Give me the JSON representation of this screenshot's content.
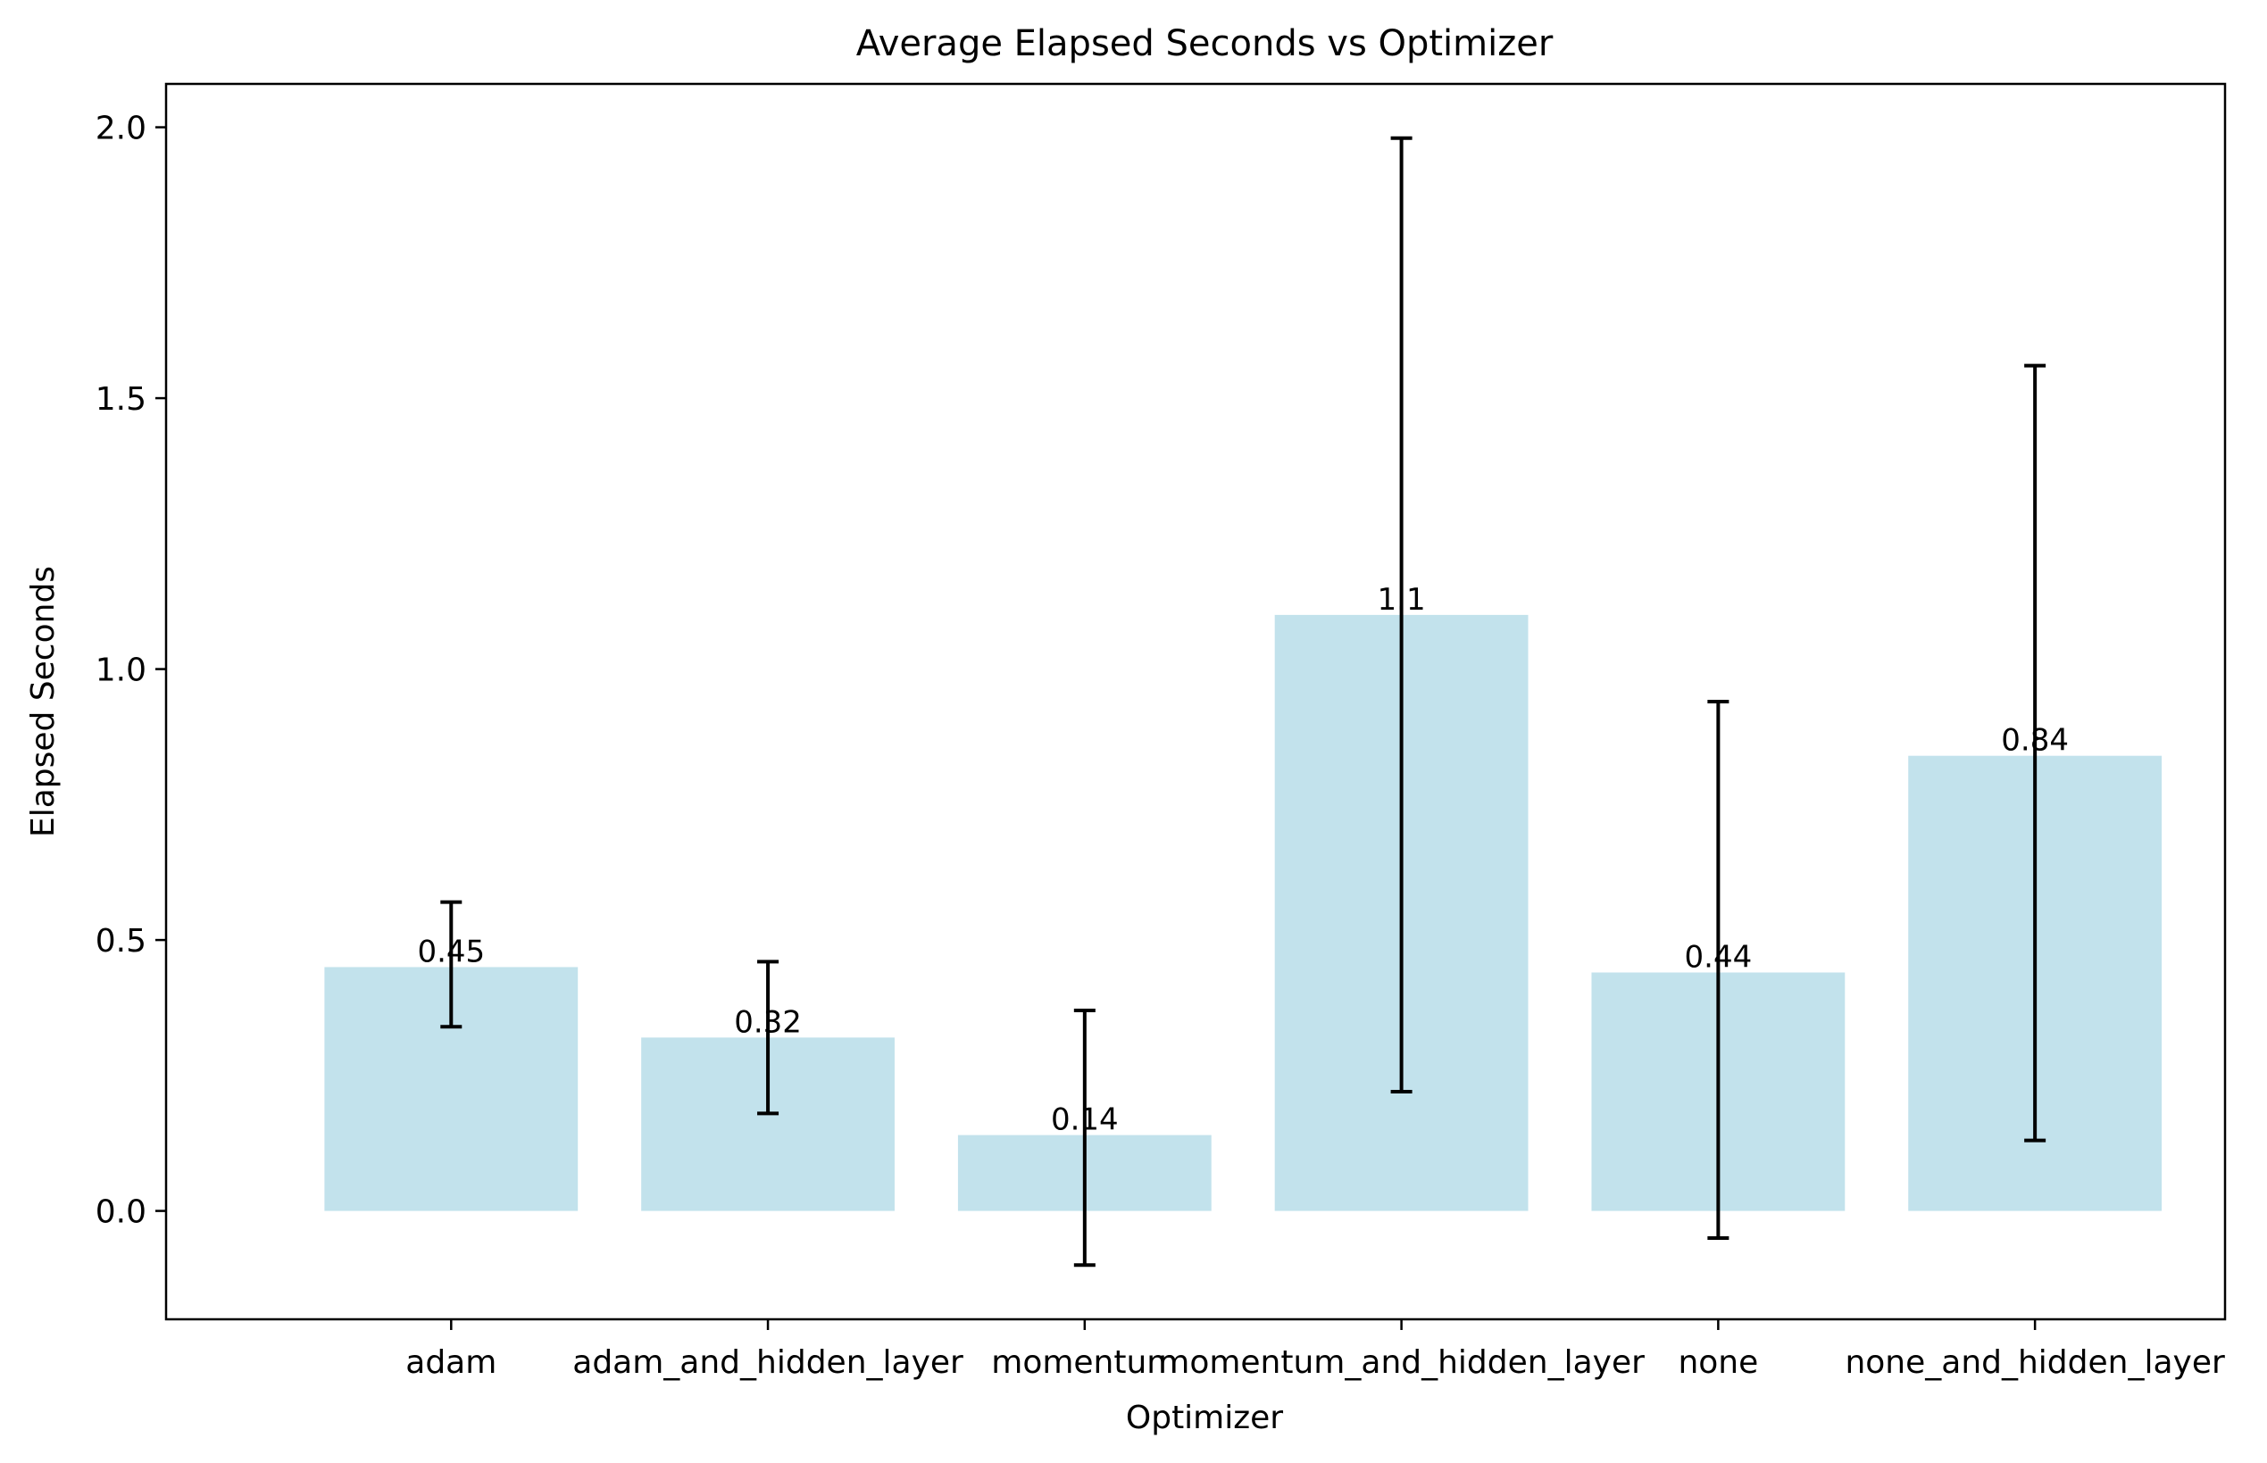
{
  "chart_data": {
    "type": "bar",
    "title": "Average Elapsed Seconds vs Optimizer",
    "xlabel": "Optimizer",
    "ylabel": "Elapsed Seconds",
    "categories": [
      "adam",
      "adam_and_hidden_layer",
      "momentum",
      "momentum_and_hidden_layer",
      "none",
      "none_and_hidden_layer"
    ],
    "values": [
      0.45,
      0.32,
      0.14,
      1.1,
      0.44,
      0.84
    ],
    "value_labels": [
      "0.45",
      "0.32",
      "0.14",
      "1.1",
      "0.44",
      "0.84"
    ],
    "error_low": [
      0.34,
      0.18,
      -0.1,
      0.22,
      -0.05,
      0.13
    ],
    "error_high": [
      0.57,
      0.46,
      0.37,
      1.98,
      0.94,
      1.56
    ],
    "ylim": [
      -0.2,
      2.08
    ],
    "yticks": [
      0.0,
      0.5,
      1.0,
      1.5,
      2.0
    ],
    "ytick_labels": [
      "0.0",
      "0.5",
      "1.0",
      "1.5",
      "2.0"
    ],
    "grid": false,
    "bar_color": "#add8e6",
    "error_color": "#000000"
  }
}
